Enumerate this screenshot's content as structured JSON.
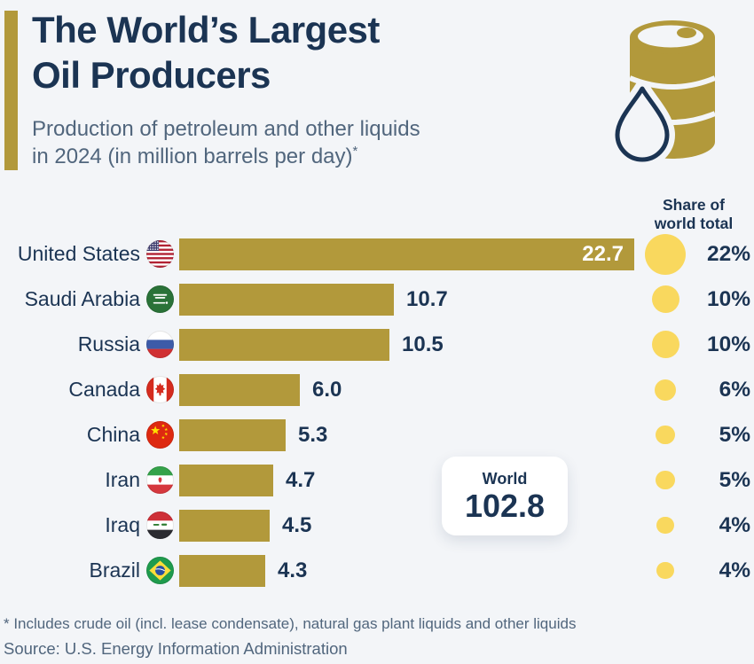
{
  "colors": {
    "background": "#f3f5f8",
    "bar_gold": "#b2993b",
    "circle_yellow": "#f9d85e",
    "text_navy": "#1b3453",
    "text_slate": "#51667d",
    "value_inside_bar": "#ffffff"
  },
  "header": {
    "title_line1": "The World’s Largest",
    "title_line2": "Oil Producers",
    "subtitle_line1": "Production of petroleum and other liquids",
    "subtitle_line2": "in 2024 (in million barrels per day)",
    "footnote_marker": "*",
    "icon": "oil-barrel-with-drop-icon"
  },
  "share_header": {
    "line1": "Share of",
    "line2": "world total"
  },
  "chart_data": {
    "type": "bar",
    "orientation": "horizontal",
    "title": "The World’s Largest Oil Producers",
    "subtitle": "Production of petroleum and other liquids in 2024 (in million barrels per day)",
    "unit": "million barrels per day",
    "xlim": [
      0,
      22.7
    ],
    "grid": false,
    "rows": [
      {
        "country": "United States",
        "flag": "us",
        "value": 22.7,
        "value_label": "22.7",
        "share_pct": 22,
        "share_label": "22%",
        "value_inside_bar": true
      },
      {
        "country": "Saudi Arabia",
        "flag": "sa",
        "value": 10.7,
        "value_label": "10.7",
        "share_pct": 10,
        "share_label": "10%",
        "value_inside_bar": false
      },
      {
        "country": "Russia",
        "flag": "ru",
        "value": 10.5,
        "value_label": "10.5",
        "share_pct": 10,
        "share_label": "10%",
        "value_inside_bar": false
      },
      {
        "country": "Canada",
        "flag": "ca",
        "value": 6.0,
        "value_label": "6.0",
        "share_pct": 6,
        "share_label": "6%",
        "value_inside_bar": false
      },
      {
        "country": "China",
        "flag": "cn",
        "value": 5.3,
        "value_label": "5.3",
        "share_pct": 5,
        "share_label": "5%",
        "value_inside_bar": false
      },
      {
        "country": "Iran",
        "flag": "ir",
        "value": 4.7,
        "value_label": "4.7",
        "share_pct": 5,
        "share_label": "5%",
        "value_inside_bar": false
      },
      {
        "country": "Iraq",
        "flag": "iq",
        "value": 4.5,
        "value_label": "4.5",
        "share_pct": 4,
        "share_label": "4%",
        "value_inside_bar": false
      },
      {
        "country": "Brazil",
        "flag": "br",
        "value": 4.3,
        "value_label": "4.3",
        "share_pct": 4,
        "share_label": "4%",
        "value_inside_bar": false
      }
    ],
    "world": {
      "label": "World",
      "value": 102.8,
      "value_label": "102.8"
    }
  },
  "footer": {
    "footnote": "* Includes crude oil (incl. lease condensate), natural gas plant liquids and other liquids",
    "source": "Source: U.S. Energy Information Administration"
  }
}
